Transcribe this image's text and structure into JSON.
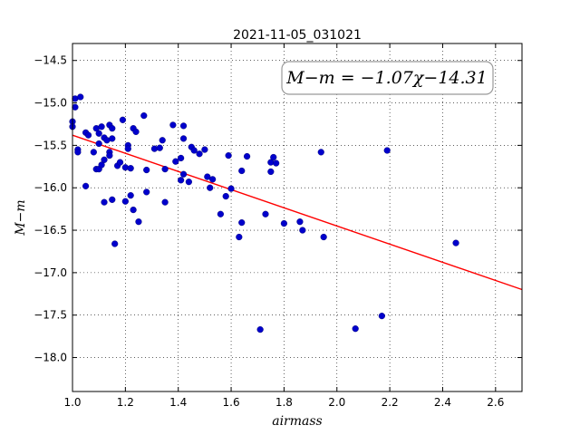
{
  "chart_data": {
    "type": "scatter",
    "title": "2021-11-05_031021",
    "xlabel": "airmass",
    "ylabel": "M−m",
    "xlim": [
      1.0,
      2.7
    ],
    "ylim": [
      -18.4,
      -14.3
    ],
    "xticks": [
      "1.0",
      "1.2",
      "1.4",
      "1.6",
      "1.8",
      "2.0",
      "2.2",
      "2.4",
      "2.6"
    ],
    "xtick_values": [
      1.0,
      1.2,
      1.4,
      1.6,
      1.8,
      2.0,
      2.2,
      2.4,
      2.6
    ],
    "yticks": [
      "−14.5",
      "−15.0",
      "−15.5",
      "−16.0",
      "−16.5",
      "−17.0",
      "−17.5",
      "−18.0"
    ],
    "ytick_values": [
      -14.5,
      -15.0,
      -15.5,
      -16.0,
      -16.5,
      -17.0,
      -17.5,
      -18.0
    ],
    "grid": true,
    "annotation": "M−m = −1.07χ−14.31",
    "annotation_position": "top-right",
    "colors": {
      "points": "#0000cc",
      "fit_line": "#ff0000"
    },
    "fit": {
      "slope": -1.07,
      "intercept": -14.31
    },
    "points": [
      [
        1.0,
        -15.22
      ],
      [
        1.0,
        -15.28
      ],
      [
        1.01,
        -14.95
      ],
      [
        1.01,
        -15.05
      ],
      [
        1.02,
        -15.55
      ],
      [
        1.02,
        -15.58
      ],
      [
        1.03,
        -14.93
      ],
      [
        1.05,
        -15.35
      ],
      [
        1.05,
        -15.98
      ],
      [
        1.06,
        -15.38
      ],
      [
        1.08,
        -15.58
      ],
      [
        1.09,
        -15.3
      ],
      [
        1.09,
        -15.78
      ],
      [
        1.1,
        -15.36
      ],
      [
        1.1,
        -15.48
      ],
      [
        1.1,
        -15.78
      ],
      [
        1.11,
        -15.73
      ],
      [
        1.11,
        -15.28
      ],
      [
        1.12,
        -15.67
      ],
      [
        1.12,
        -15.41
      ],
      [
        1.12,
        -16.17
      ],
      [
        1.13,
        -15.44
      ],
      [
        1.14,
        -15.26
      ],
      [
        1.14,
        -15.58
      ],
      [
        1.14,
        -15.62
      ],
      [
        1.15,
        -15.3
      ],
      [
        1.15,
        -15.42
      ],
      [
        1.15,
        -16.14
      ],
      [
        1.16,
        -16.66
      ],
      [
        1.17,
        -15.74
      ],
      [
        1.18,
        -15.7
      ],
      [
        1.19,
        -15.2
      ],
      [
        1.2,
        -15.76
      ],
      [
        1.2,
        -16.16
      ],
      [
        1.21,
        -15.5
      ],
      [
        1.21,
        -15.54
      ],
      [
        1.22,
        -15.77
      ],
      [
        1.22,
        -16.09
      ],
      [
        1.23,
        -16.26
      ],
      [
        1.23,
        -15.3
      ],
      [
        1.24,
        -15.34
      ],
      [
        1.25,
        -16.4
      ],
      [
        1.27,
        -15.15
      ],
      [
        1.28,
        -15.79
      ],
      [
        1.28,
        -16.05
      ],
      [
        1.31,
        -15.54
      ],
      [
        1.33,
        -15.53
      ],
      [
        1.34,
        -15.44
      ],
      [
        1.35,
        -15.78
      ],
      [
        1.35,
        -16.17
      ],
      [
        1.38,
        -15.26
      ],
      [
        1.39,
        -15.69
      ],
      [
        1.41,
        -15.65
      ],
      [
        1.41,
        -15.91
      ],
      [
        1.42,
        -15.27
      ],
      [
        1.42,
        -15.42
      ],
      [
        1.42,
        -15.84
      ],
      [
        1.44,
        -15.93
      ],
      [
        1.45,
        -15.52
      ],
      [
        1.46,
        -15.56
      ],
      [
        1.48,
        -15.6
      ],
      [
        1.5,
        -15.55
      ],
      [
        1.51,
        -15.87
      ],
      [
        1.52,
        -16.0
      ],
      [
        1.53,
        -15.9
      ],
      [
        1.56,
        -16.31
      ],
      [
        1.58,
        -16.1
      ],
      [
        1.59,
        -15.62
      ],
      [
        1.6,
        -16.01
      ],
      [
        1.63,
        -16.58
      ],
      [
        1.64,
        -16.41
      ],
      [
        1.64,
        -15.8
      ],
      [
        1.66,
        -15.63
      ],
      [
        1.71,
        -17.67
      ],
      [
        1.73,
        -16.31
      ],
      [
        1.75,
        -15.7
      ],
      [
        1.75,
        -15.81
      ],
      [
        1.76,
        -15.64
      ],
      [
        1.77,
        -15.71
      ],
      [
        1.8,
        -16.42
      ],
      [
        1.86,
        -16.4
      ],
      [
        1.87,
        -16.5
      ],
      [
        1.94,
        -15.58
      ],
      [
        1.95,
        -16.58
      ],
      [
        2.07,
        -17.66
      ],
      [
        2.17,
        -17.51
      ],
      [
        2.19,
        -15.56
      ],
      [
        2.45,
        -16.65
      ]
    ]
  }
}
